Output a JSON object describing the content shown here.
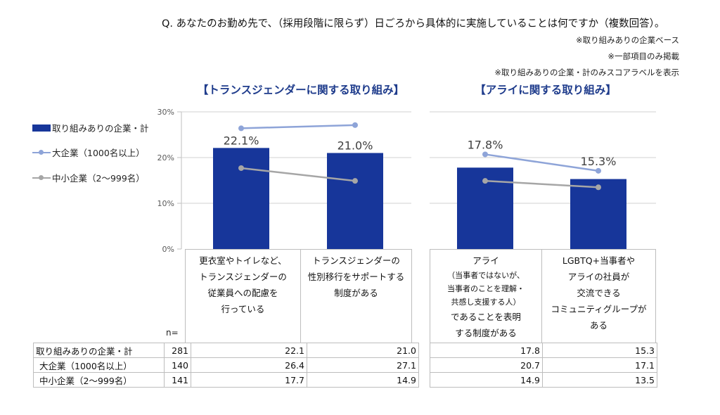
{
  "header": {
    "question": "Q. あなたのお勤め先で、（採用段階に限らず）日ごろから具体的に実施していることは何ですか（複数回答）。",
    "notes": [
      "※取り組みありの企業ベース",
      "※一部項目のみ掲載",
      "※取り組みありの企業・計のみスコアラベルを表示"
    ]
  },
  "legend": {
    "items": [
      {
        "label": "取り組みありの企業・計",
        "type": "bar",
        "color": "#17369a"
      },
      {
        "label": "大企業（1000名以上）",
        "type": "line",
        "color": "#8ea4d8"
      },
      {
        "label": "中小企業（2〜999名）",
        "type": "line",
        "color": "#a6a6a6"
      }
    ]
  },
  "table": {
    "n_label": "n=",
    "rows": [
      {
        "label": "取り組みありの企業・計",
        "n": "281"
      },
      {
        "label": "大企業（1000名以上）",
        "n": "140"
      },
      {
        "label": "中小企業（2〜999名）",
        "n": "141"
      }
    ]
  },
  "chart_data": [
    {
      "type": "bar",
      "title": "【トランスジェンダーに関する取り組み】",
      "ylim": [
        0,
        30
      ],
      "yticks": [
        "0%",
        "10%",
        "20%",
        "30%"
      ],
      "grid": true,
      "legend": "left",
      "categories": [
        "更衣室やトイレなど、トランスジェンダーの従業員への配慮を行っている",
        "トランスジェンダーの性別移行をサポートする制度がある"
      ],
      "category_lines": [
        [
          "更衣室やトイレなど、",
          "トランスジェンダーの",
          "従業員への配慮を",
          "行っている"
        ],
        [
          "トランスジェンダーの",
          "性別移行をサポートする",
          "制度がある"
        ]
      ],
      "series": [
        {
          "name": "取り組みありの企業・計",
          "kind": "bar",
          "values": [
            22.1,
            21.0
          ],
          "labels": [
            "22.1%",
            "21.0%"
          ],
          "table": [
            "22.1",
            "21.0"
          ]
        },
        {
          "name": "大企業（1000名以上）",
          "kind": "line",
          "values": [
            26.4,
            27.1
          ],
          "table": [
            "26.4",
            "27.1"
          ]
        },
        {
          "name": "中小企業（2〜999名）",
          "kind": "line",
          "values": [
            17.7,
            14.9
          ],
          "table": [
            "17.7",
            "14.9"
          ]
        }
      ]
    },
    {
      "type": "bar",
      "title": "【アライに関する取り組み】",
      "ylim": [
        0,
        30
      ],
      "grid": true,
      "categories": [
        "アライ（当事者ではないが、当事者のことを理解・共感し支援する人）であることを表明する制度がある",
        "LGBTQ+当事者やアライの社員が交流できるコミュニティグループがある"
      ],
      "category_lines": [
        [
          {
            "t": "アライ"
          },
          {
            "t": "（当事者ではないが、",
            "s": 1
          },
          {
            "t": "当事者のことを理解・",
            "s": 1
          },
          {
            "t": "共感し支援する人）",
            "s": 1
          },
          {
            "t": "であることを表明"
          },
          {
            "t": "する制度がある"
          }
        ],
        [
          {
            "t": "LGBTQ+当事者や"
          },
          {
            "t": "アライの社員が"
          },
          {
            "t": "交流できる"
          },
          {
            "t": "コミュニティグループが"
          },
          {
            "t": "ある"
          }
        ]
      ],
      "series": [
        {
          "name": "取り組みありの企業・計",
          "kind": "bar",
          "values": [
            17.8,
            15.3
          ],
          "labels": [
            "17.8%",
            "15.3%"
          ],
          "table": [
            "17.8",
            "15.3"
          ]
        },
        {
          "name": "大企業（1000名以上）",
          "kind": "line",
          "values": [
            20.7,
            17.1
          ],
          "table": [
            "20.7",
            "17.1"
          ]
        },
        {
          "name": "中小企業（2〜999名）",
          "kind": "line",
          "values": [
            14.9,
            13.5
          ],
          "table": [
            "14.9",
            "13.5"
          ]
        }
      ]
    }
  ]
}
